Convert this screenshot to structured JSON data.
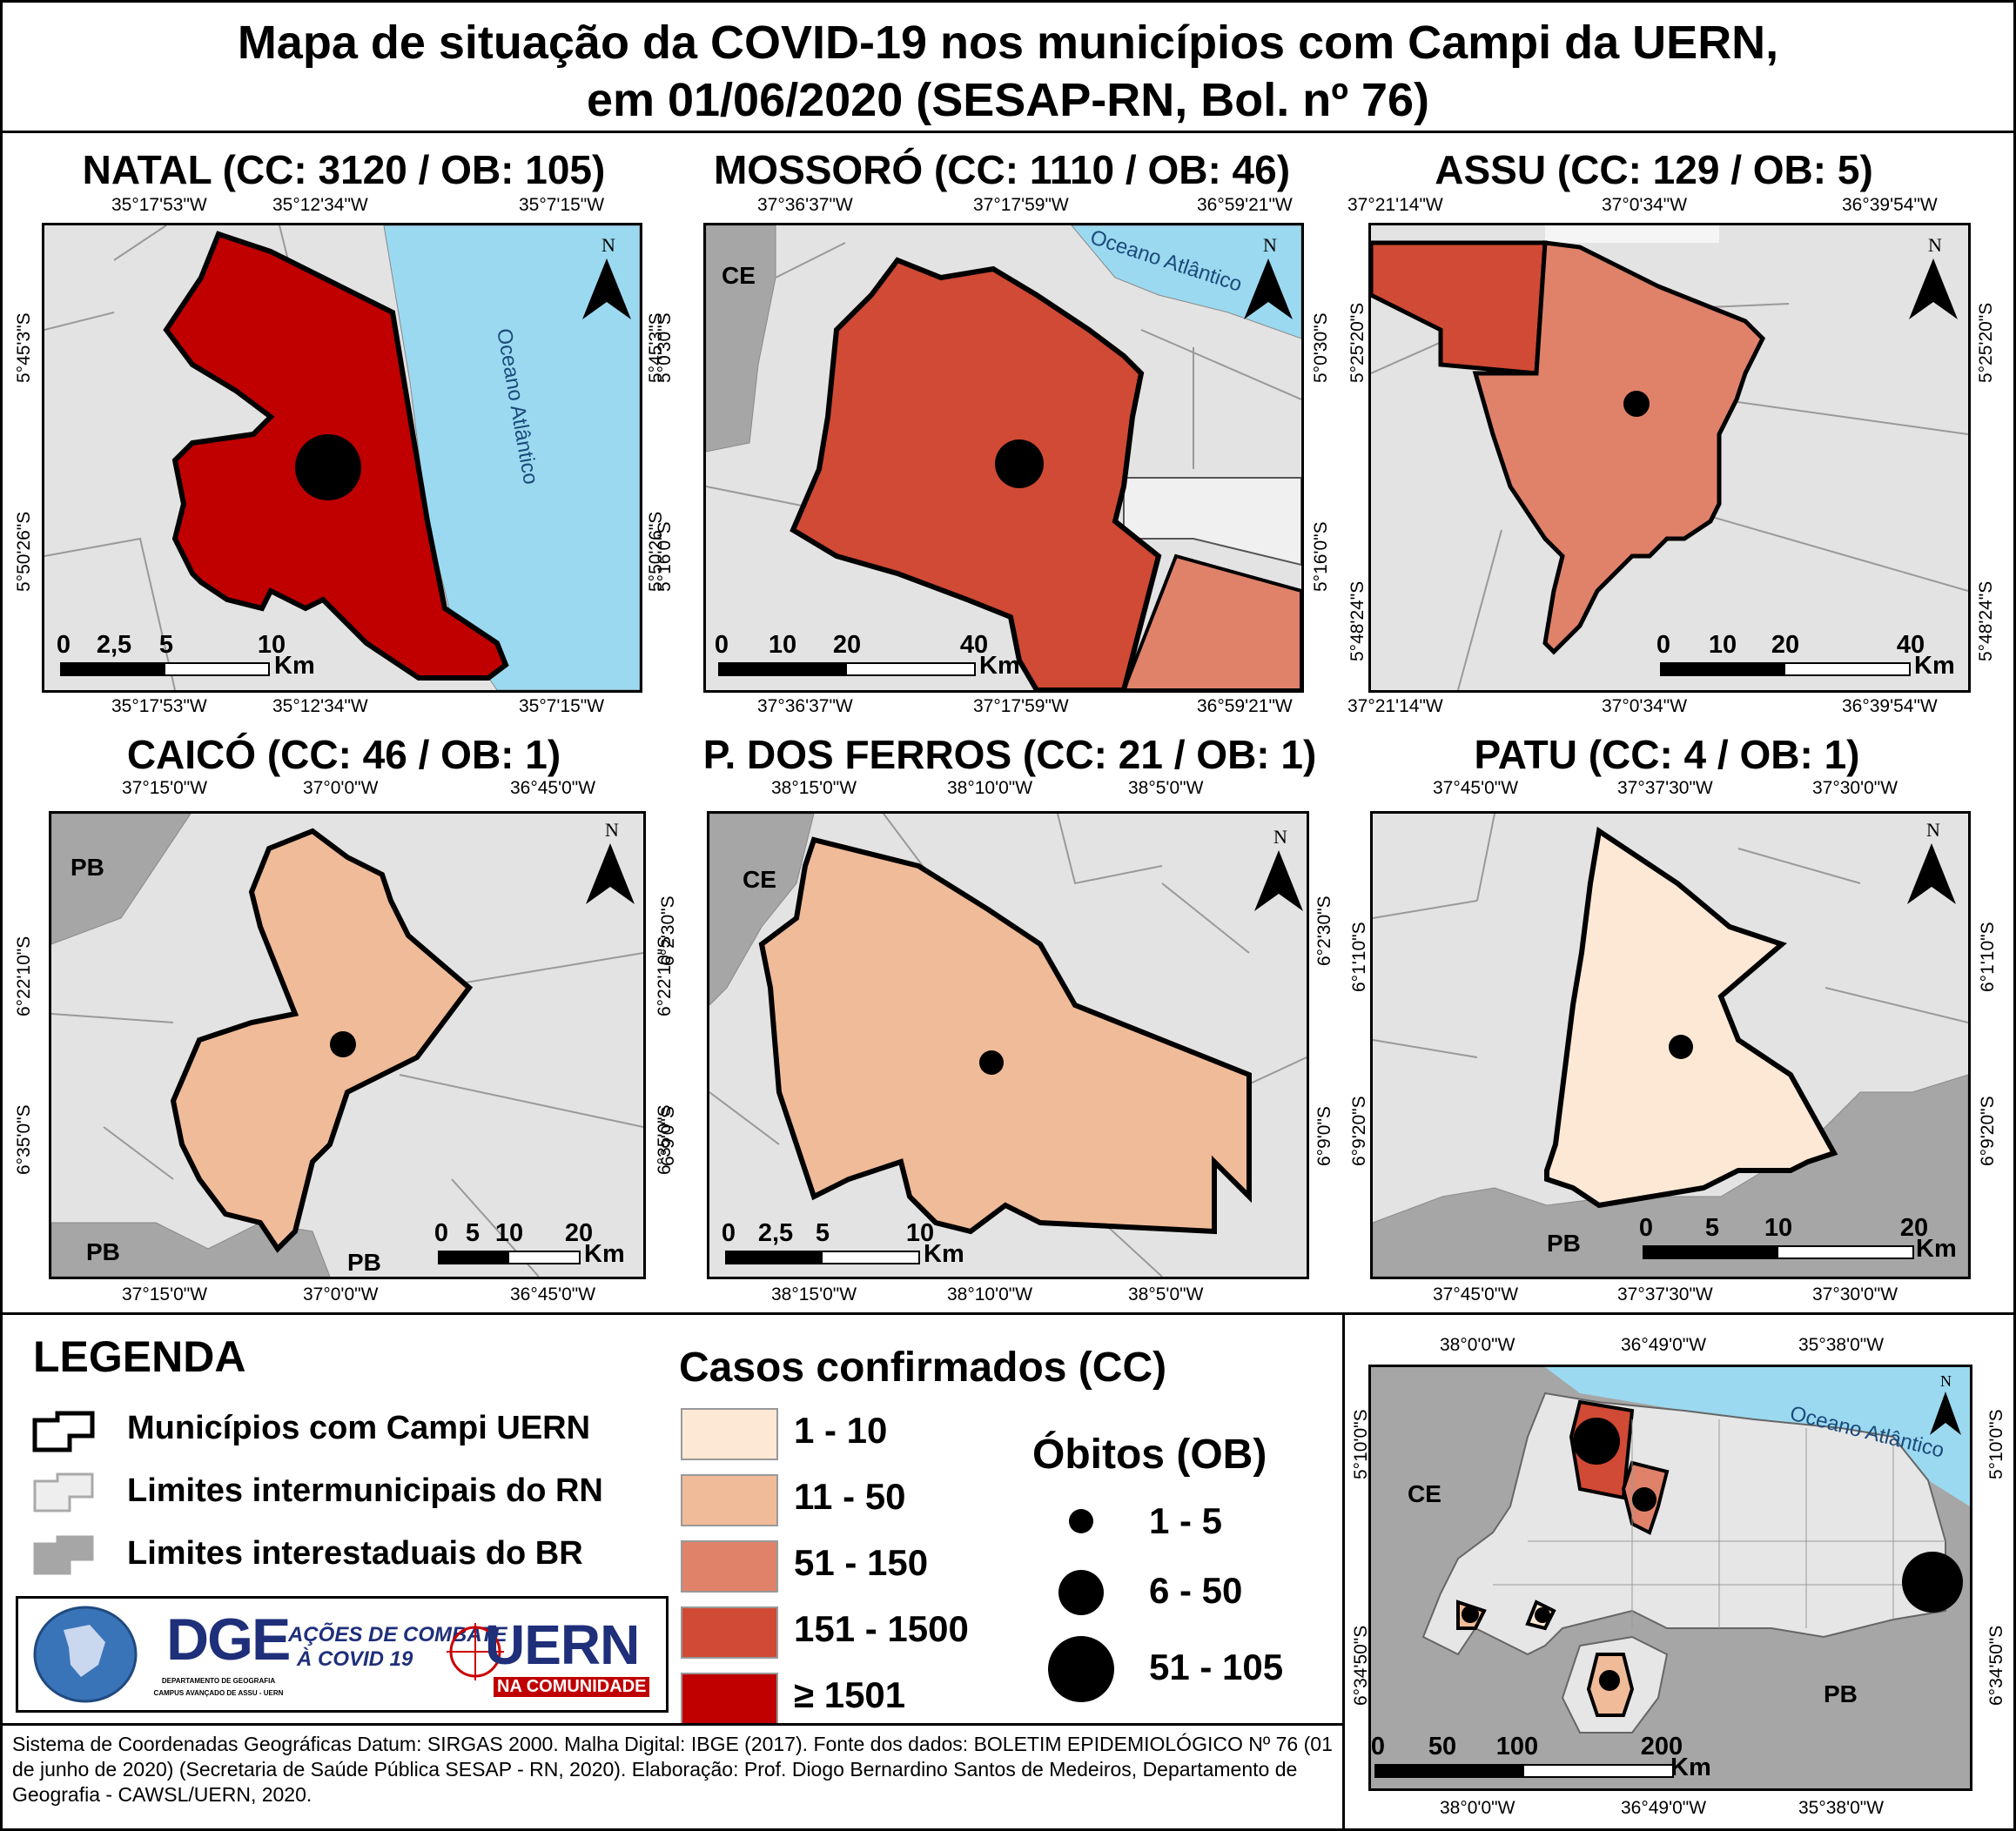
{
  "title": {
    "line1": "Mapa de situação da COVID-19 nos municípios com Campi da UERN,",
    "line2": "em 01/06/2020 (SESAP-RN, Bol. nº 76)"
  },
  "panels": [
    {
      "key": "natal",
      "title": "NATAL (CC: 3120 / OB: 105)",
      "cases": 3120,
      "deaths": 105,
      "fill": "#c00000",
      "top_coords": [
        "35°17'53\"W",
        "35°12'34\"W",
        "35°7'15\"W"
      ],
      "bottom_coords": [
        "35°17'53\"W",
        "35°12'34\"W",
        "35°7'15\"W"
      ],
      "left_coords": [
        "5°45'3\"S",
        "5°50'26\"S"
      ],
      "right_coords": [
        "5°45'3\"S",
        "5°50'26\"S"
      ],
      "scale": [
        "0",
        "2,5",
        "5",
        "10"
      ],
      "unit": "Km",
      "sea_label": "Oceano Atlântico",
      "north": "N"
    },
    {
      "key": "mossoro",
      "title": "MOSSORÓ (CC: 1110 / OB: 46)",
      "cases": 1110,
      "deaths": 46,
      "fill": "#d04a35",
      "top_coords": [
        "37°36'37\"W",
        "37°17'59\"W",
        "36°59'21\"W"
      ],
      "bottom_coords": [
        "37°36'37\"W",
        "37°17'59\"W",
        "36°59'21\"W"
      ],
      "left_coords": [
        "5°0'30\"S",
        "5°16'0\"S"
      ],
      "right_coords": [
        "5°0'30\"S",
        "5°16'0\"S"
      ],
      "scale": [
        "0",
        "10",
        "20",
        "40"
      ],
      "unit": "Km",
      "sea_label": "Oceano Atlântico",
      "state": "CE",
      "north": "N"
    },
    {
      "key": "assu",
      "title": "ASSU (CC: 129 / OB: 5)",
      "cases": 129,
      "deaths": 5,
      "fill": "#e0826a",
      "top_coords": [
        "37°21'14\"W",
        "37°0'34\"W",
        "36°39'54\"W"
      ],
      "bottom_coords": [
        "37°21'14\"W",
        "37°0'34\"W",
        "36°39'54\"W"
      ],
      "left_coords": [
        "5°25'20\"S",
        "5°48'24\"S"
      ],
      "right_coords": [
        "5°25'20\"S",
        "5°48'24\"S"
      ],
      "scale": [
        "0",
        "10",
        "20",
        "40"
      ],
      "unit": "Km",
      "north": "N"
    },
    {
      "key": "caico",
      "title": "CAICÓ (CC: 46 / OB: 1)",
      "cases": 46,
      "deaths": 1,
      "fill": "#f0bb98",
      "top_coords": [
        "37°15'0\"W",
        "37°0'0\"W",
        "36°45'0\"W"
      ],
      "bottom_coords": [
        "37°15'0\"W",
        "37°0'0\"W",
        "36°45'0\"W"
      ],
      "left_coords": [
        "6°22'10\"S",
        "6°35'0\"S"
      ],
      "right_coords": [
        "6°22'10\"S",
        "6°35'0\"S"
      ],
      "scale": [
        "0",
        "5",
        "10",
        "20"
      ],
      "unit": "Km",
      "states": [
        "PB",
        "PB",
        "PB"
      ],
      "north": "N"
    },
    {
      "key": "pferros",
      "title": "P. DOS FERROS (CC: 21 / OB: 1)",
      "cases": 21,
      "deaths": 1,
      "fill": "#f0bb98",
      "top_coords": [
        "38°15'0\"W",
        "38°10'0\"W",
        "38°5'0\"W"
      ],
      "bottom_coords": [
        "38°15'0\"W",
        "38°10'0\"W",
        "38°5'0\"W"
      ],
      "left_coords": [
        "6°2'30\"S",
        "6°9'0\"S"
      ],
      "right_coords": [
        "6°2'30\"S",
        "6°9'0\"S"
      ],
      "scale": [
        "0",
        "2,5",
        "5",
        "10"
      ],
      "unit": "Km",
      "state": "CE",
      "north": "N"
    },
    {
      "key": "patu",
      "title": "PATU (CC: 4 / OB: 1)",
      "cases": 4,
      "deaths": 1,
      "fill": "#fde8d6",
      "top_coords": [
        "37°45'0\"W",
        "37°37'30\"W",
        "37°30'0\"W"
      ],
      "bottom_coords": [
        "37°45'0\"W",
        "37°37'30\"W",
        "37°30'0\"W"
      ],
      "left_coords": [
        "6°1'10\"S",
        "6°9'20\"S"
      ],
      "right_coords": [
        "6°1'10\"S",
        "6°9'20\"S"
      ],
      "scale": [
        "0",
        "5",
        "10",
        "20"
      ],
      "unit": "Km",
      "state": "PB",
      "north": "N"
    }
  ],
  "legend": {
    "title": "LEGENDA",
    "items": [
      "Municípios com Campi UERN",
      "Limites intermunicipais do RN",
      "Limites interestaduais do BR"
    ],
    "cc_title": "Casos confirmados (CC)",
    "cc_classes": [
      {
        "label": "1 - 10",
        "color": "#fde8d6"
      },
      {
        "label": "11 - 50",
        "color": "#f0bb98"
      },
      {
        "label": "51 - 150",
        "color": "#e0826a"
      },
      {
        "label": "151 - 1500",
        "color": "#d04a35"
      },
      {
        "label": "≥ 1501",
        "color": "#c00000"
      }
    ],
    "ob_title": "Óbitos (OB)",
    "ob_classes": [
      "1 - 5",
      "6 - 50",
      "51 - 105"
    ]
  },
  "logos": {
    "dge": "DGE",
    "dge_sub": "DEPARTAMENTO DE GEOGRAFIA",
    "dge_sub2": "CAMPUS AVANÇADO DE ASSU - UERN",
    "acoes1": "AÇÕES DE COMBATE",
    "acoes2": "À COVID 19",
    "uern": "UERN",
    "uern_sub": "NA COMUNIDADE"
  },
  "footer": "Sistema de Coordenadas Geográficas Datum: SIRGAS 2000. Malha Digital: IBGE (2017). Fonte dos dados: BOLETIM EPIDEMIOLÓGICO Nº 76 (01 de junho de 2020) (Secretaria de Saúde Pública SESAP - RN, 2020). Elaboração: Prof. Diogo Bernardino Santos de Medeiros, Departamento de Geografia - CAWSL/UERN, 2020.",
  "overview": {
    "top_coords": [
      "38°0'0\"W",
      "36°49'0\"W",
      "35°38'0\"W"
    ],
    "bottom_coords": [
      "38°0'0\"W",
      "36°49'0\"W",
      "35°38'0\"W"
    ],
    "left_coords": [
      "5°10'0\"S",
      "6°34'50\"S"
    ],
    "right_coords": [
      "5°10'0\"S",
      "6°34'50\"S"
    ],
    "sea_label": "Oceano Atlântico",
    "state_ce": "CE",
    "state_pb": "PB",
    "scale": [
      "0",
      "50",
      "100",
      "200"
    ],
    "unit": "Km",
    "north": "N"
  },
  "colors": {
    "sea": "#9bd9f0",
    "neighbor_state": "#a6a6a6",
    "rn_bg": "#e3e3e3"
  }
}
